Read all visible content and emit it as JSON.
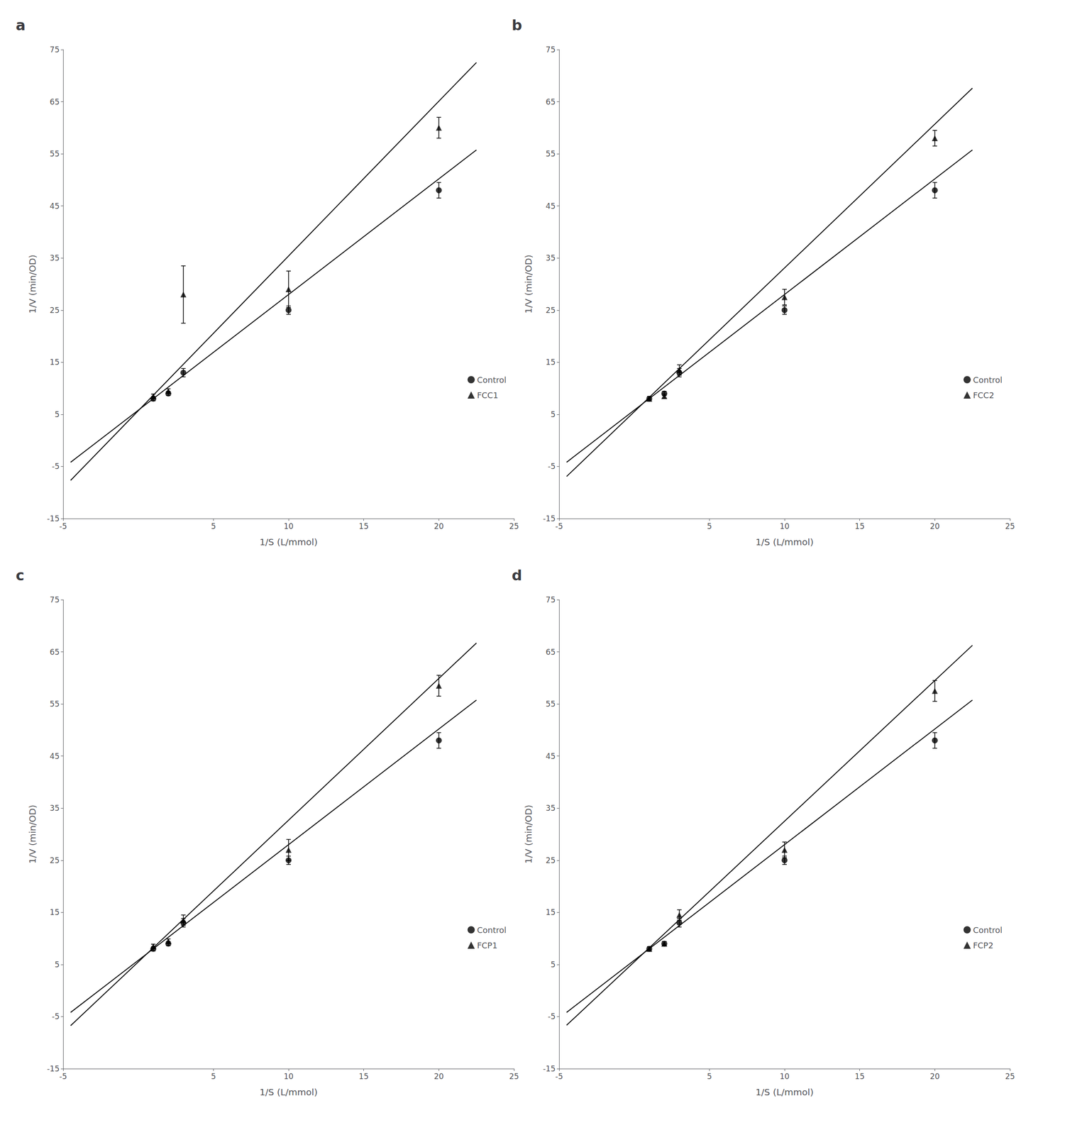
{
  "chart_data": [
    {
      "type": "scatter",
      "title": "a",
      "xlabel": "1/S (L/mmol)",
      "ylabel": "1/V (min/OD)",
      "xlim": [
        -5,
        25
      ],
      "xticks": [
        -5,
        5,
        10,
        15,
        20,
        25
      ],
      "ylim": [
        -15,
        75
      ],
      "yticks": [
        -15,
        -5,
        5,
        15,
        25,
        35,
        45,
        55,
        65,
        75
      ],
      "grid": false,
      "legend": "lower right",
      "series": [
        {
          "type": "line",
          "color": "#000000",
          "x": [
            -4.5,
            22.5
          ],
          "values": [
            -4.19,
            55.75
          ]
        },
        {
          "type": "line",
          "color": "#000000",
          "x": [
            -4.5,
            22.5
          ],
          "values": [
            -7.665,
            72.525
          ]
        },
        {
          "type": "scatter",
          "name": "Control",
          "marker": "circle",
          "color": "#000000",
          "x": [
            1,
            2,
            3,
            10,
            20
          ],
          "values": [
            8.0,
            9.0,
            13.0,
            25.0,
            48.0
          ],
          "yerr": [
            0.4,
            0.4,
            0.8,
            0.8,
            1.5
          ]
        },
        {
          "type": "scatter",
          "name": "FCC1",
          "marker": "triangle",
          "color": "#000000",
          "x": [
            1,
            2,
            3,
            10,
            20
          ],
          "values": [
            8.5,
            9.5,
            28.0,
            29.0,
            60.0
          ],
          "yerr": [
            0.4,
            0.4,
            5.5,
            3.5,
            2.0
          ]
        }
      ]
    },
    {
      "type": "scatter",
      "title": "b",
      "xlabel": "1/S (L/mmol)",
      "ylabel": "1/V (min/OD)",
      "xlim": [
        -5,
        25
      ],
      "xticks": [
        -5,
        5,
        10,
        15,
        20,
        25
      ],
      "ylim": [
        -15,
        75
      ],
      "yticks": [
        -15,
        -5,
        5,
        15,
        25,
        35,
        45,
        55,
        65,
        75
      ],
      "grid": false,
      "legend": "lower right",
      "series": [
        {
          "type": "line",
          "color": "#000000",
          "x": [
            -4.5,
            22.5
          ],
          "values": [
            -4.19,
            55.75
          ]
        },
        {
          "type": "line",
          "color": "#000000",
          "x": [
            -4.5,
            22.5
          ],
          "values": [
            -6.92,
            67.6
          ]
        },
        {
          "type": "scatter",
          "name": "Control",
          "marker": "circle",
          "color": "#000000",
          "x": [
            1,
            2,
            3,
            10,
            20
          ],
          "values": [
            8.0,
            9.0,
            13.0,
            25.0,
            48.0
          ],
          "yerr": [
            0.4,
            0.4,
            0.8,
            0.8,
            1.5
          ]
        },
        {
          "type": "scatter",
          "name": "FCC2",
          "marker": "triangle",
          "color": "#000000",
          "x": [
            1,
            2,
            3,
            10,
            20
          ],
          "values": [
            8.0,
            8.5,
            13.5,
            27.5,
            58.0
          ],
          "yerr": [
            0.4,
            0.4,
            1.0,
            1.5,
            1.5
          ]
        }
      ]
    },
    {
      "type": "scatter",
      "title": "c",
      "xlabel": "1/S (L/mmol)",
      "ylabel": "1/V (min/OD)",
      "xlim": [
        -5,
        25
      ],
      "xticks": [
        -5,
        5,
        10,
        15,
        20,
        25
      ],
      "ylim": [
        -15,
        75
      ],
      "yticks": [
        -15,
        -5,
        5,
        15,
        25,
        35,
        45,
        55,
        65,
        75
      ],
      "grid": false,
      "legend": "lower right",
      "series": [
        {
          "type": "line",
          "color": "#000000",
          "x": [
            -4.5,
            22.5
          ],
          "values": [
            -4.19,
            55.75
          ]
        },
        {
          "type": "line",
          "color": "#000000",
          "x": [
            -4.5,
            22.5
          ],
          "values": [
            -6.74,
            66.7
          ]
        },
        {
          "type": "scatter",
          "name": "Control",
          "marker": "circle",
          "color": "#000000",
          "x": [
            1,
            2,
            3,
            10,
            20
          ],
          "values": [
            8.0,
            9.0,
            13.0,
            25.0,
            48.0
          ],
          "yerr": [
            0.4,
            0.4,
            0.8,
            0.8,
            1.5
          ]
        },
        {
          "type": "scatter",
          "name": "FCP1",
          "marker": "triangle",
          "color": "#000000",
          "x": [
            1,
            2,
            3,
            10,
            20
          ],
          "values": [
            8.5,
            9.5,
            13.5,
            27.0,
            58.5
          ],
          "yerr": [
            0.4,
            0.4,
            1.0,
            2.0,
            2.0
          ]
        }
      ]
    },
    {
      "type": "scatter",
      "title": "d",
      "xlabel": "1/S (L/mmol)",
      "ylabel": "1/V (min/OD)",
      "xlim": [
        -5,
        25
      ],
      "xticks": [
        -5,
        5,
        10,
        15,
        20,
        25
      ],
      "ylim": [
        -15,
        75
      ],
      "yticks": [
        -15,
        -5,
        5,
        15,
        25,
        35,
        45,
        55,
        65,
        75
      ],
      "grid": false,
      "legend": "lower right",
      "series": [
        {
          "type": "line",
          "color": "#000000",
          "x": [
            -4.5,
            22.5
          ],
          "values": [
            -4.19,
            55.75
          ]
        },
        {
          "type": "line",
          "color": "#000000",
          "x": [
            -4.5,
            22.5
          ],
          "values": [
            -6.65,
            66.25
          ]
        },
        {
          "type": "scatter",
          "name": "Control",
          "marker": "circle",
          "color": "#000000",
          "x": [
            1,
            2,
            3,
            10,
            20
          ],
          "values": [
            8.0,
            9.0,
            13.0,
            25.0,
            48.0
          ],
          "yerr": [
            0.4,
            0.4,
            0.8,
            0.8,
            1.5
          ]
        },
        {
          "type": "scatter",
          "name": "FCP2",
          "marker": "triangle",
          "color": "#000000",
          "x": [
            1,
            2,
            3,
            10,
            20
          ],
          "values": [
            8.0,
            9.0,
            14.5,
            27.0,
            57.5
          ],
          "yerr": [
            0.4,
            0.4,
            1.0,
            1.5,
            2.0
          ]
        }
      ]
    }
  ]
}
